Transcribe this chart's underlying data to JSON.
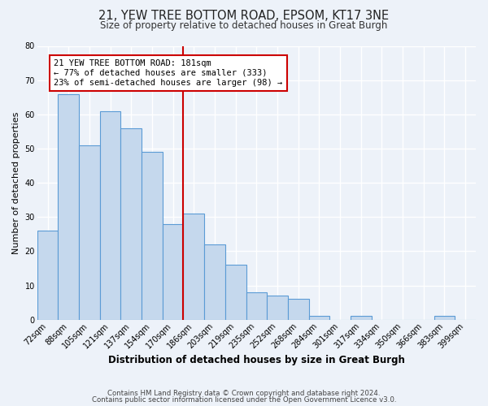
{
  "title": "21, YEW TREE BOTTOM ROAD, EPSOM, KT17 3NE",
  "subtitle": "Size of property relative to detached houses in Great Burgh",
  "xlabel": "Distribution of detached houses by size in Great Burgh",
  "ylabel": "Number of detached properties",
  "bin_labels": [
    "72sqm",
    "88sqm",
    "105sqm",
    "121sqm",
    "137sqm",
    "154sqm",
    "170sqm",
    "186sqm",
    "203sqm",
    "219sqm",
    "235sqm",
    "252sqm",
    "268sqm",
    "284sqm",
    "301sqm",
    "317sqm",
    "334sqm",
    "350sqm",
    "366sqm",
    "383sqm",
    "399sqm"
  ],
  "bar_heights": [
    26,
    66,
    51,
    61,
    56,
    49,
    28,
    31,
    22,
    16,
    8,
    7,
    6,
    1,
    0,
    1,
    0,
    0,
    0,
    1,
    0
  ],
  "bar_color": "#c5d8ed",
  "bar_edge_color": "#5b9bd5",
  "vline_color": "#cc0000",
  "annotation_text": "21 YEW TREE BOTTOM ROAD: 181sqm\n← 77% of detached houses are smaller (333)\n23% of semi-detached houses are larger (98) →",
  "annotation_box_color": "#ffffff",
  "annotation_box_edge": "#cc0000",
  "ylim": [
    0,
    80
  ],
  "yticks": [
    0,
    10,
    20,
    30,
    40,
    50,
    60,
    70,
    80
  ],
  "footer1": "Contains HM Land Registry data © Crown copyright and database right 2024.",
  "footer2": "Contains public sector information licensed under the Open Government Licence v3.0.",
  "bg_color": "#edf2f9",
  "plot_bg_color": "#edf2f9",
  "grid_color": "#ffffff",
  "title_fontsize": 10.5,
  "subtitle_fontsize": 8.5,
  "xlabel_fontsize": 8.5,
  "ylabel_fontsize": 8,
  "tick_fontsize": 7,
  "annotation_fontsize": 7.5,
  "footer_fontsize": 6.2
}
